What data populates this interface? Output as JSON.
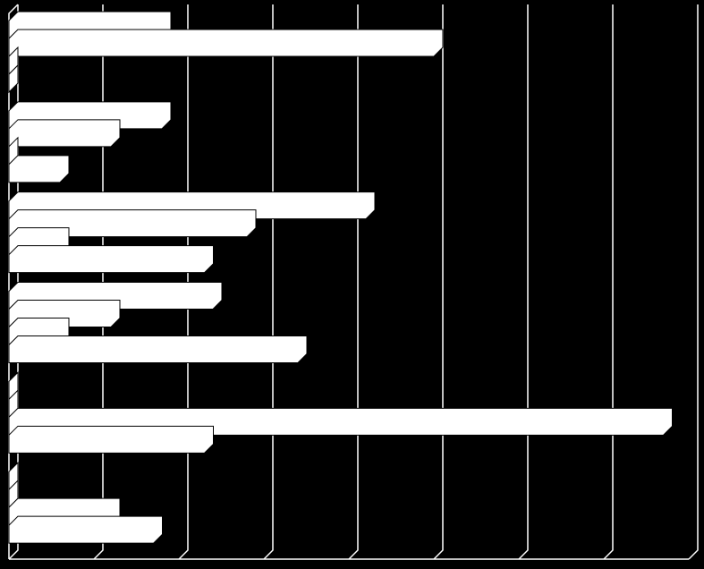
{
  "chart_data": {
    "type": "bar",
    "orientation": "horizontal",
    "categories": [
      null,
      null,
      null,
      null,
      null,
      null
    ],
    "series": [
      {
        "color": "#ffffff",
        "values": [
          1.8,
          1.8,
          4.2,
          2.4,
          0,
          0
        ]
      },
      {
        "color": "#ffffff",
        "values": [
          5.0,
          1.2,
          2.8,
          1.2,
          0,
          0
        ]
      },
      {
        "color": "#ffffff",
        "values": [
          0,
          0,
          0.6,
          0.6,
          7.7,
          1.2
        ]
      },
      {
        "color": "#ffffff",
        "values": [
          0,
          0.6,
          2.3,
          3.4,
          2.3,
          1.7
        ]
      }
    ],
    "xlim": [
      0,
      8
    ],
    "xticks": [
      0,
      1,
      2,
      3,
      4,
      5,
      6,
      7,
      8
    ],
    "grid": true
  }
}
